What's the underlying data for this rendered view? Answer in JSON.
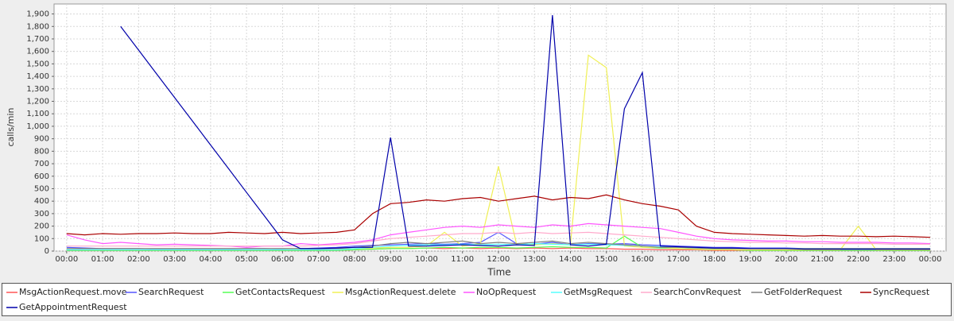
{
  "chart_data": {
    "type": "line",
    "xlabel": "Time",
    "ylabel": "calls/min",
    "grid": true,
    "x": [
      0,
      0.5,
      1,
      1.5,
      2,
      2.5,
      3,
      3.5,
      4,
      4.5,
      5,
      5.5,
      6,
      6.5,
      7,
      7.5,
      8,
      8.5,
      9,
      9.5,
      10,
      10.5,
      11,
      11.5,
      12,
      12.5,
      13,
      13.5,
      14,
      14.5,
      15,
      15.5,
      16,
      16.5,
      17,
      17.5,
      18,
      18.5,
      19,
      19.5,
      20,
      20.5,
      21,
      21.5,
      22,
      22.5,
      23,
      23.5,
      24
    ],
    "xlim": [
      -0.35,
      24.44
    ],
    "xticks": [
      {
        "value": 0,
        "label": "00:00"
      },
      {
        "value": 1,
        "label": "01:00"
      },
      {
        "value": 2,
        "label": "02:00"
      },
      {
        "value": 3,
        "label": "03:00"
      },
      {
        "value": 4,
        "label": "04:00"
      },
      {
        "value": 5,
        "label": "05:00"
      },
      {
        "value": 6,
        "label": "06:00"
      },
      {
        "value": 7,
        "label": "07:00"
      },
      {
        "value": 8,
        "label": "08:00"
      },
      {
        "value": 9,
        "label": "09:00"
      },
      {
        "value": 10,
        "label": "10:00"
      },
      {
        "value": 11,
        "label": "11:00"
      },
      {
        "value": 12,
        "label": "12:00"
      },
      {
        "value": 13,
        "label": "13:00"
      },
      {
        "value": 14,
        "label": "14:00"
      },
      {
        "value": 15,
        "label": "15:00"
      },
      {
        "value": 16,
        "label": "16:00"
      },
      {
        "value": 17,
        "label": "17:00"
      },
      {
        "value": 18,
        "label": "18:00"
      },
      {
        "value": 19,
        "label": "19:00"
      },
      {
        "value": 20,
        "label": "20:00"
      },
      {
        "value": 21,
        "label": "21:00"
      },
      {
        "value": 22,
        "label": "22:00"
      },
      {
        "value": 23,
        "label": "23:00"
      },
      {
        "value": 24,
        "label": "00:00"
      }
    ],
    "ylim": [
      0,
      1980
    ],
    "yticks": [
      0,
      100,
      200,
      300,
      400,
      500,
      600,
      700,
      800,
      900,
      {
        "value": 1000,
        "label": "1,000"
      },
      {
        "value": 1100,
        "label": "1,100"
      },
      {
        "value": 1200,
        "label": "1,200"
      },
      {
        "value": 1300,
        "label": "1,300"
      },
      {
        "value": 1400,
        "label": "1,400"
      },
      {
        "value": 1500,
        "label": "1,500"
      },
      {
        "value": 1600,
        "label": "1,600"
      },
      {
        "value": 1700,
        "label": "1,700"
      },
      {
        "value": 1800,
        "label": "1,800"
      },
      {
        "value": 1900,
        "label": "1,900"
      }
    ],
    "series": [
      {
        "name": "MsgActionRequest.move",
        "color": "#ff5555",
        "values": [
          5,
          5,
          5,
          5,
          5,
          5,
          5,
          5,
          5,
          5,
          5,
          5,
          5,
          5,
          5,
          5,
          10,
          15,
          20,
          20,
          25,
          20,
          25,
          20,
          25,
          20,
          25,
          20,
          25,
          20,
          20,
          15,
          15,
          10,
          10,
          10,
          5,
          5,
          5,
          5,
          5,
          5,
          5,
          5,
          5,
          5,
          5,
          5,
          5
        ]
      },
      {
        "name": "SearchRequest",
        "color": "#5555ff",
        "values": [
          30,
          25,
          20,
          20,
          20,
          15,
          15,
          15,
          15,
          15,
          20,
          20,
          15,
          20,
          25,
          30,
          40,
          45,
          50,
          55,
          60,
          55,
          60,
          70,
          150,
          60,
          55,
          70,
          50,
          60,
          55,
          60,
          50,
          45,
          40,
          35,
          30,
          30,
          25,
          25,
          25,
          20,
          20,
          20,
          20,
          20,
          20,
          20,
          20
        ]
      },
      {
        "name": "GetContactsRequest",
        "color": "#55ff55",
        "values": [
          5,
          5,
          5,
          5,
          5,
          5,
          5,
          5,
          5,
          5,
          5,
          5,
          5,
          5,
          5,
          5,
          10,
          15,
          20,
          20,
          25,
          30,
          25,
          30,
          30,
          25,
          30,
          35,
          30,
          30,
          25,
          120,
          30,
          25,
          20,
          15,
          10,
          10,
          5,
          5,
          5,
          5,
          5,
          5,
          5,
          5,
          5,
          5,
          5
        ]
      },
      {
        "name": "MsgActionRequest.delete",
        "color": "#f0f055",
        "values": [
          10,
          10,
          10,
          10,
          10,
          10,
          10,
          10,
          10,
          10,
          10,
          10,
          10,
          15,
          15,
          20,
          20,
          25,
          30,
          30,
          40,
          150,
          40,
          60,
          680,
          60,
          50,
          60,
          50,
          1570,
          1470,
          40,
          30,
          30,
          20,
          15,
          10,
          10,
          10,
          10,
          10,
          10,
          10,
          10,
          200,
          10,
          10,
          10,
          10
        ]
      },
      {
        "name": "NoOpRequest",
        "color": "#ff55ff",
        "values": [
          130,
          90,
          60,
          70,
          60,
          50,
          55,
          50,
          45,
          40,
          30,
          40,
          40,
          60,
          50,
          60,
          70,
          90,
          130,
          150,
          170,
          190,
          200,
          190,
          210,
          200,
          190,
          210,
          200,
          220,
          210,
          200,
          190,
          180,
          150,
          120,
          100,
          90,
          85,
          80,
          80,
          75,
          75,
          70,
          70,
          70,
          65,
          65,
          60
        ]
      },
      {
        "name": "GetMsgRequest",
        "color": "#55ffff",
        "values": [
          10,
          10,
          10,
          10,
          10,
          10,
          10,
          10,
          10,
          10,
          10,
          10,
          10,
          10,
          10,
          10,
          20,
          30,
          40,
          45,
          50,
          50,
          55,
          50,
          55,
          50,
          60,
          55,
          50,
          55,
          50,
          45,
          40,
          35,
          30,
          25,
          20,
          20,
          20,
          20,
          20,
          20,
          20,
          20,
          20,
          20,
          20,
          20,
          20
        ]
      },
      {
        "name": "SearchConvRequest",
        "color": "#ffaacc",
        "values": [
          40,
          40,
          40,
          40,
          40,
          40,
          40,
          40,
          40,
          40,
          40,
          40,
          40,
          40,
          45,
          50,
          60,
          80,
          100,
          110,
          120,
          130,
          140,
          140,
          150,
          140,
          150,
          140,
          145,
          150,
          140,
          130,
          120,
          110,
          100,
          90,
          80,
          75,
          70,
          70,
          65,
          65,
          60,
          60,
          60,
          60,
          55,
          55,
          55
        ]
      },
      {
        "name": "GetFolderRequest",
        "color": "#808080",
        "values": [
          20,
          20,
          20,
          20,
          20,
          20,
          20,
          20,
          20,
          20,
          20,
          20,
          20,
          20,
          20,
          20,
          30,
          40,
          60,
          70,
          60,
          70,
          80,
          60,
          70,
          60,
          70,
          80,
          60,
          70,
          60,
          50,
          40,
          30,
          30,
          25,
          20,
          20,
          20,
          20,
          20,
          20,
          20,
          20,
          20,
          20,
          20,
          20,
          20
        ]
      },
      {
        "name": "SyncRequest",
        "color": "#aa0000",
        "values": [
          140,
          130,
          140,
          135,
          140,
          140,
          145,
          140,
          140,
          150,
          145,
          140,
          150,
          140,
          145,
          150,
          170,
          300,
          380,
          390,
          410,
          400,
          420,
          430,
          400,
          420,
          440,
          410,
          430,
          420,
          450,
          410,
          380,
          360,
          330,
          200,
          150,
          140,
          135,
          130,
          125,
          120,
          125,
          120,
          120,
          115,
          120,
          115,
          110
        ]
      },
      {
        "name": "GetAppointmentRequest",
        "color": "#0000aa",
        "values": [
          null,
          null,
          null,
          1800,
          1610,
          1420,
          1230,
          1040,
          850,
          660,
          470,
          280,
          90,
          20,
          20,
          25,
          30,
          30,
          910,
          40,
          40,
          45,
          50,
          45,
          40,
          50,
          45,
          1890,
          50,
          40,
          55,
          1140,
          1430,
          40,
          35,
          30,
          25,
          25,
          20,
          20,
          20,
          15,
          15,
          15,
          15,
          15,
          15,
          15,
          15
        ]
      }
    ]
  }
}
